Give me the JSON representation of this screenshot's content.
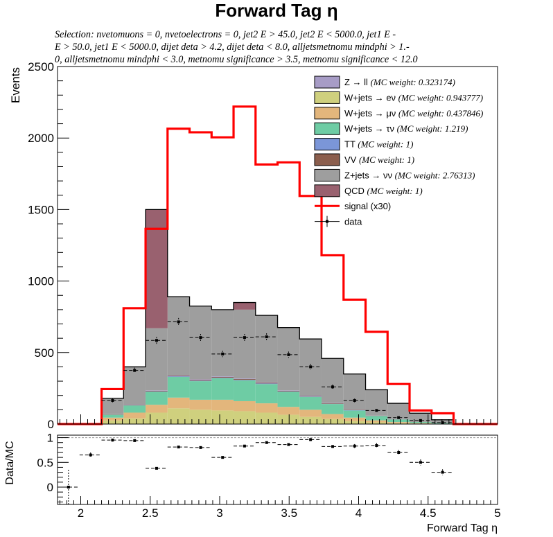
{
  "title": "Forward Tag η",
  "selection_lines": [
    "Selection: nvetomuons  =  0, nvetoelectrons  =  0, jet2 E > 45.0, jet2 E < 5000.0, jet1 E -",
    "E > 50.0, jet1 E < 5000.0, dijet deta > 4.2, dijet deta < 8.0, alljetsmetnomu mindphi > 1.-",
    "0, alljetsmetnomu mindphi < 3.0, metnomu significance > 3.5, metnomu significance < 12.0"
  ],
  "colors": {
    "Zll": "#a79cc6",
    "Wev": "#cfd07e",
    "Wmv": "#e3b67c",
    "Wtv": "#6ecca4",
    "TT": "#7b96d8",
    "VV": "#8b5e4d",
    "Znn": "#9e9e9e",
    "QCD": "#99616f",
    "signal": "#ff0000"
  },
  "chart_data": [
    {
      "type": "bar",
      "stacked": true,
      "title": "Forward Tag η",
      "xlabel": "Forward Tag η",
      "ylabel": "Events",
      "xlim": [
        1.833,
        5.0
      ],
      "ylim": [
        0,
        2500
      ],
      "yticks": [
        0,
        500,
        1000,
        1500,
        2000,
        2500
      ],
      "xticks": [
        2,
        2.5,
        3,
        3.5,
        4,
        4.5,
        5
      ],
      "bin_edges": [
        1.833,
        1.9917,
        2.15,
        2.3083,
        2.4667,
        2.625,
        2.7833,
        2.9417,
        3.1,
        3.2583,
        3.4167,
        3.575,
        3.7333,
        3.8917,
        4.05,
        4.2083,
        4.3667,
        4.525,
        4.6833,
        4.8417,
        5.0
      ],
      "legend_position": "top-right",
      "series": [
        {
          "key": "Wev",
          "name": "W+jets → eν",
          "annotation": "(MC weight: 0.943777)",
          "values": [
            0,
            0,
            25,
            40,
            80,
            110,
            100,
            95,
            90,
            80,
            65,
            50,
            35,
            20,
            12,
            6,
            3,
            1,
            0,
            0
          ]
        },
        {
          "key": "Wmv",
          "name": "W+jets → μν",
          "annotation": "(MC weight: 0.437846)",
          "values": [
            0,
            0,
            20,
            40,
            55,
            75,
            70,
            75,
            70,
            65,
            55,
            50,
            35,
            25,
            14,
            8,
            4,
            2,
            0,
            0
          ]
        },
        {
          "key": "Wtv",
          "name": "W+jets → τν",
          "annotation": "(MC weight: 1.219)",
          "values": [
            0,
            0,
            20,
            50,
            90,
            145,
            130,
            150,
            145,
            135,
            105,
            90,
            70,
            50,
            30,
            18,
            8,
            4,
            0,
            0
          ]
        },
        {
          "key": "TT",
          "name": "TT",
          "annotation": "(MC weight: 1)",
          "values": [
            0,
            0,
            1,
            2,
            3,
            4,
            4,
            4,
            4,
            4,
            3,
            3,
            2,
            2,
            1,
            1,
            0,
            0,
            0,
            0
          ]
        },
        {
          "key": "VV",
          "name": "VV",
          "annotation": "(MC weight: 1)",
          "values": [
            0,
            0,
            2,
            4,
            5,
            6,
            6,
            6,
            6,
            6,
            5,
            5,
            4,
            3,
            2,
            1,
            1,
            0,
            0,
            0
          ]
        },
        {
          "key": "Zll",
          "name": "Z → ll",
          "annotation": "(MC weight: 0.323174)",
          "values": [
            0,
            0,
            1,
            2,
            3,
            4,
            4,
            4,
            4,
            4,
            3,
            3,
            2,
            2,
            1,
            1,
            0,
            0,
            0,
            0
          ]
        },
        {
          "key": "Znn",
          "name": "Z+jets → νν",
          "annotation": "(MC weight: 2.76313)",
          "values": [
            0,
            0,
            111,
            262,
            434,
            546,
            511,
            466,
            481,
            466,
            439,
            394,
            311,
            248,
            180,
            110,
            60,
            23,
            0,
            0
          ]
        },
        {
          "key": "QCD",
          "name": "QCD",
          "annotation": "(MC weight: 1)",
          "values": [
            0,
            0,
            0,
            0,
            830,
            0,
            0,
            0,
            50,
            0,
            0,
            0,
            0,
            0,
            0,
            0,
            0,
            0,
            0,
            0
          ]
        }
      ],
      "signal": {
        "key": "signal",
        "name": "signal (x30)",
        "values": [
          0,
          0,
          245,
          810,
          1365,
          2065,
          2040,
          2005,
          2220,
          1815,
          1830,
          1595,
          1180,
          870,
          645,
          280,
          95,
          75,
          0,
          0
        ]
      },
      "data": {
        "name": "data",
        "values": [
          0,
          0,
          165,
          375,
          585,
          715,
          605,
          490,
          605,
          610,
          485,
          400,
          260,
          165,
          95,
          45,
          25,
          10,
          0,
          0
        ]
      }
    },
    {
      "type": "scatter",
      "xlabel": "Forward Tag η",
      "ylabel": "Data/MC",
      "xlim": [
        1.833,
        5.0
      ],
      "ylim": [
        -0.35,
        1.05
      ],
      "yticks": [
        0,
        0.5,
        1
      ],
      "reference_line": 1,
      "x": [
        1.912,
        2.071,
        2.229,
        2.388,
        2.546,
        2.704,
        2.863,
        3.021,
        3.179,
        3.338,
        3.496,
        3.654,
        3.813,
        3.971,
        4.129,
        4.288,
        4.446,
        4.604
      ],
      "y": [
        0.0,
        0.65,
        0.95,
        0.94,
        0.38,
        0.81,
        0.8,
        0.6,
        0.83,
        0.9,
        0.86,
        0.96,
        0.82,
        0.83,
        0.84,
        0.7,
        0.5,
        0.3
      ],
      "yerr": [
        0.35,
        0.05,
        0.03,
        0.02,
        0.02,
        0.02,
        0.02,
        0.02,
        0.02,
        0.02,
        0.02,
        0.03,
        0.03,
        0.04,
        0.05,
        0.05,
        0.06,
        0.06
      ]
    }
  ]
}
